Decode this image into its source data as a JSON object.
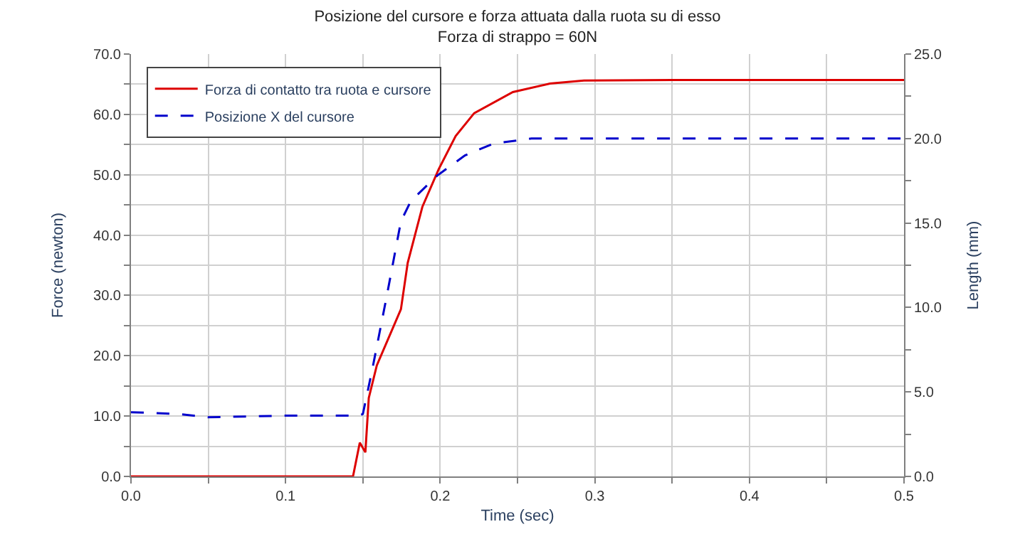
{
  "chart_data": {
    "type": "line",
    "title": "Posizione del cursore e forza attuata dalla ruota su di esso",
    "subtitle": "Forza di strappo = 60N",
    "xlabel": "Time (sec)",
    "ylabel": "Force (newton)",
    "y2label": "Length (mm)",
    "series": [
      {
        "name": "Forza di contatto tra ruota e cursore",
        "color": "#dd0000",
        "line_style": "solid",
        "x": [
          0,
          0.1436,
          0.148,
          0.1516,
          0.1538,
          0.159,
          0.1746,
          0.179,
          0.1885,
          0.199,
          0.21,
          0.222,
          0.247,
          0.271,
          0.293,
          0.35,
          0.5
        ],
        "values": [
          0,
          0,
          5.6,
          4.0,
          13,
          18.4,
          27.7,
          35.4,
          44.7,
          50.9,
          56.4,
          60.2,
          63.7,
          65.1,
          65.6,
          65.7,
          65.7
        ]
      },
      {
        "name": "Posizione X del cursore",
        "color": "#0000cc",
        "line_style": "dashed",
        "axis": "y2",
        "x": [
          0,
          0.03,
          0.05,
          0.1,
          0.148,
          0.15,
          0.156,
          0.1655,
          0.1746,
          0.181,
          0.198,
          0.216,
          0.2345,
          0.259,
          0.3,
          0.5
        ],
        "values": [
          3.8,
          3.7,
          3.5,
          3.6,
          3.6,
          3.7,
          6.3,
          10.7,
          15.1,
          16.3,
          17.8,
          19.0,
          19.7,
          20.0,
          20.0,
          20.0
        ]
      }
    ],
    "xlim": [
      0,
      0.5
    ],
    "xticks": [
      "0.0",
      {
        "value": 0.05,
        "label": null
      },
      {
        "value": 0.1,
        "label": "0.1"
      },
      {
        "value": 0.15,
        "label": null
      },
      {
        "value": 0.2,
        "label": "0.2"
      },
      {
        "value": 0.25,
        "label": null
      },
      {
        "value": 0.3,
        "label": "0.3"
      },
      {
        "value": 0.35,
        "label": null
      },
      {
        "value": 0.4,
        "label": "0.4"
      },
      {
        "value": 0.45,
        "label": null
      },
      {
        "value": 0.5,
        "label": "0.5"
      }
    ],
    "ylim": [
      0,
      70
    ],
    "yticks": [
      {
        "value": 0,
        "label": "0.0"
      },
      {
        "value": 5,
        "label": null
      },
      {
        "value": 10,
        "label": "10.0"
      },
      {
        "value": 15,
        "label": null
      },
      {
        "value": 20,
        "label": "20.0"
      },
      {
        "value": 25,
        "label": null
      },
      {
        "value": 30,
        "label": "30.0"
      },
      {
        "value": 35,
        "label": null
      },
      {
        "value": 40,
        "label": "40.0"
      },
      {
        "value": 45,
        "label": null
      },
      {
        "value": 50,
        "label": "50.0"
      },
      {
        "value": 55,
        "label": null
      },
      {
        "value": 60,
        "label": "60.0"
      },
      {
        "value": 65,
        "label": null
      },
      {
        "value": 70,
        "label": "70.0"
      }
    ],
    "y2lim": [
      0,
      25
    ],
    "y2ticks": [
      {
        "value": 0,
        "label": "0.0"
      },
      {
        "value": 2.5,
        "label": null
      },
      {
        "value": 5,
        "label": "5.0"
      },
      {
        "value": 7.5,
        "label": null
      },
      {
        "value": 10,
        "label": "10.0"
      },
      {
        "value": 12.5,
        "label": null
      },
      {
        "value": 15,
        "label": "15.0"
      },
      {
        "value": 17.5,
        "label": null
      },
      {
        "value": 20,
        "label": "20.0"
      },
      {
        "value": 22.5,
        "label": null
      },
      {
        "value": 25,
        "label": "25.0"
      }
    ],
    "grid": true,
    "legend": "top left",
    "marker": "none"
  }
}
